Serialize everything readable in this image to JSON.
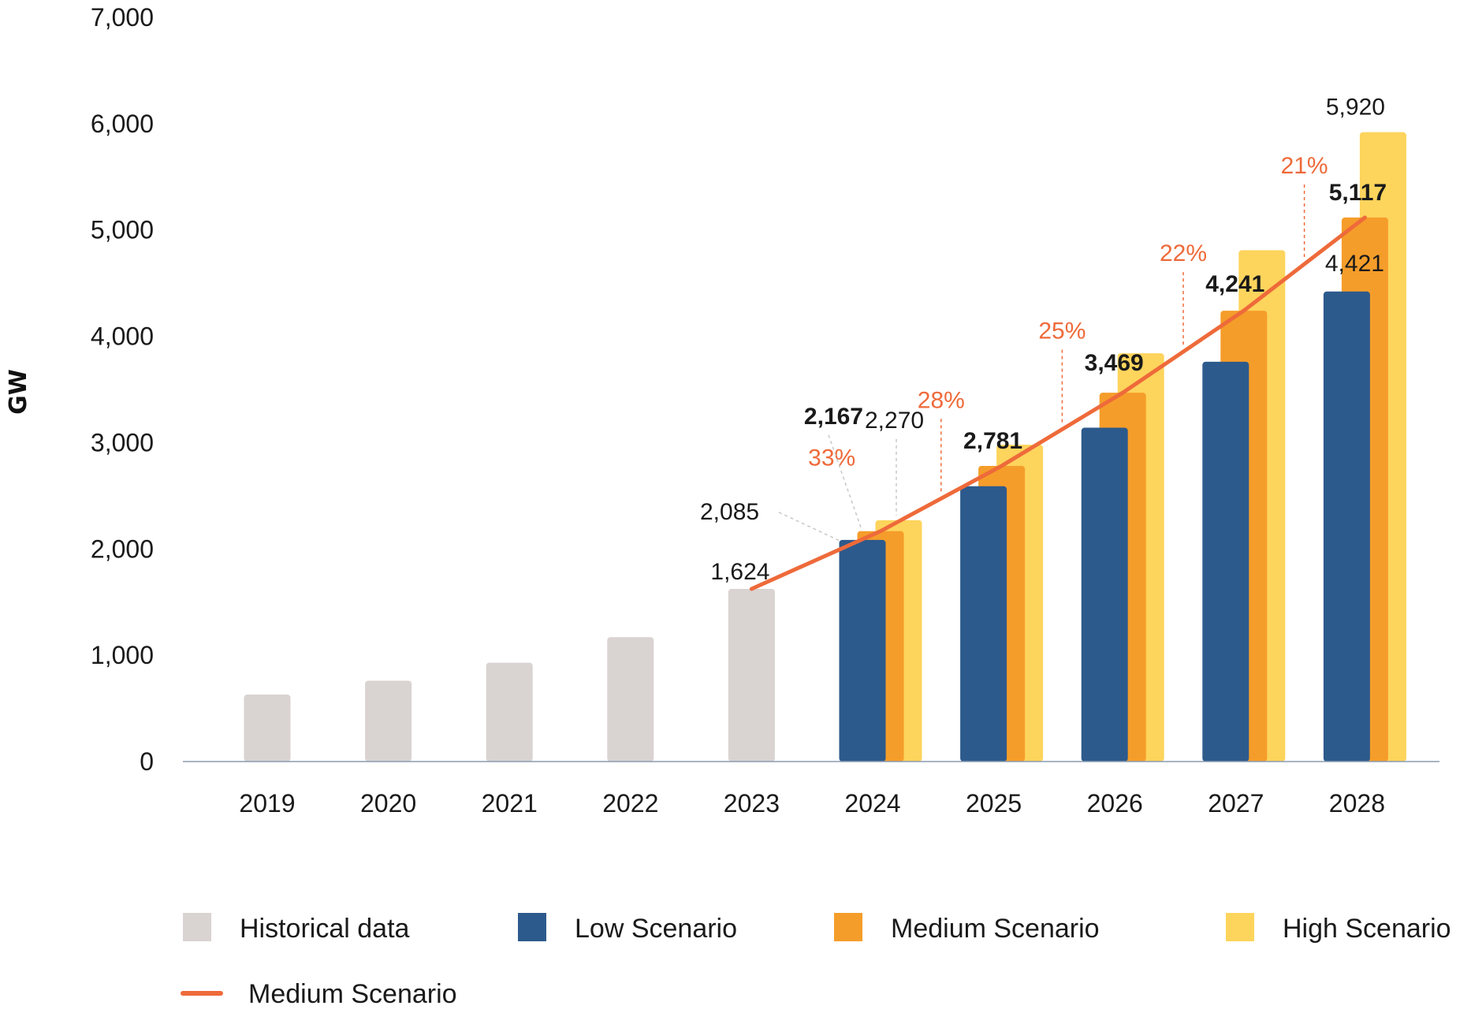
{
  "chart_data": {
    "type": "bar",
    "ylabel": "GW",
    "xlabel": "",
    "ylim": [
      0,
      7000
    ],
    "yticks": [
      0,
      1000,
      2000,
      3000,
      4000,
      5000,
      6000,
      7000
    ],
    "ytick_labels": [
      "0",
      "1,000",
      "2,000",
      "3,000",
      "4,000",
      "5,000",
      "6,000",
      "7,000"
    ],
    "categories": [
      "2019",
      "2020",
      "2021",
      "2022",
      "2023",
      "2024",
      "2025",
      "2026",
      "2027",
      "2028"
    ],
    "grid": false,
    "series": [
      {
        "name": "Historical data",
        "color": "#d9d3d1",
        "values": [
          630,
          760,
          930,
          1170,
          1624,
          null,
          null,
          null,
          null,
          null
        ]
      },
      {
        "name": "Low Scenario",
        "color": "#2d5a8c",
        "values": [
          null,
          null,
          null,
          null,
          null,
          2085,
          2590,
          3140,
          3760,
          4421
        ]
      },
      {
        "name": "Medium Scenario",
        "color": "#f59d2a",
        "values": [
          null,
          null,
          null,
          null,
          null,
          2167,
          2781,
          3469,
          4241,
          5117
        ]
      },
      {
        "name": "High Scenario",
        "color": "#fdd45c",
        "values": [
          null,
          null,
          null,
          null,
          null,
          2270,
          2980,
          3840,
          4810,
          5920
        ]
      }
    ],
    "line": {
      "name": "Medium Scenario",
      "color": "#ee6a3a",
      "categories": [
        "2023",
        "2024",
        "2025",
        "2026",
        "2027",
        "2028"
      ],
      "values": [
        1624,
        2167,
        2781,
        3469,
        4241,
        5117
      ]
    },
    "data_labels": [
      {
        "text": "1,624",
        "category": "2023",
        "value": 1624,
        "bold": false,
        "leader": false
      },
      {
        "text": "2,085",
        "category": "2024",
        "value": 2085,
        "bold": false,
        "leader": true
      },
      {
        "text": "2,167",
        "category": "2024",
        "value": 2167,
        "bold": true,
        "leader": true
      },
      {
        "text": "2,270",
        "category": "2024",
        "value": 2270,
        "bold": false,
        "leader": true
      },
      {
        "text": "2,781",
        "category": "2025",
        "value": 2781,
        "bold": true,
        "leader": false
      },
      {
        "text": "3,469",
        "category": "2026",
        "value": 3469,
        "bold": true,
        "leader": false
      },
      {
        "text": "4,241",
        "category": "2027",
        "value": 4241,
        "bold": true,
        "leader": false
      },
      {
        "text": "4,421",
        "category": "2028",
        "value": 4421,
        "bold": false,
        "leader": false
      },
      {
        "text": "5,117",
        "category": "2028",
        "value": 5117,
        "bold": true,
        "leader": false
      },
      {
        "text": "5,920",
        "category": "2028",
        "value": 5920,
        "bold": false,
        "leader": false
      }
    ],
    "growth_labels": [
      {
        "text": "33%",
        "between": [
          "2023",
          "2024"
        ]
      },
      {
        "text": "28%",
        "between": [
          "2024",
          "2025"
        ]
      },
      {
        "text": "25%",
        "between": [
          "2025",
          "2026"
        ]
      },
      {
        "text": "22%",
        "between": [
          "2026",
          "2027"
        ]
      },
      {
        "text": "21%",
        "between": [
          "2027",
          "2028"
        ]
      }
    ],
    "legend": {
      "placement": "bottom",
      "items": [
        {
          "label": "Historical data",
          "kind": "box",
          "color": "#d9d3d1"
        },
        {
          "label": "Low Scenario",
          "kind": "box",
          "color": "#2d5a8c"
        },
        {
          "label": "Medium Scenario",
          "kind": "box",
          "color": "#f59d2a"
        },
        {
          "label": "High Scenario",
          "kind": "box",
          "color": "#fdd45c"
        },
        {
          "label": "Medium Scenario",
          "kind": "line",
          "color": "#ee6a3a"
        }
      ]
    },
    "axis_color": "#8a9bb0"
  }
}
